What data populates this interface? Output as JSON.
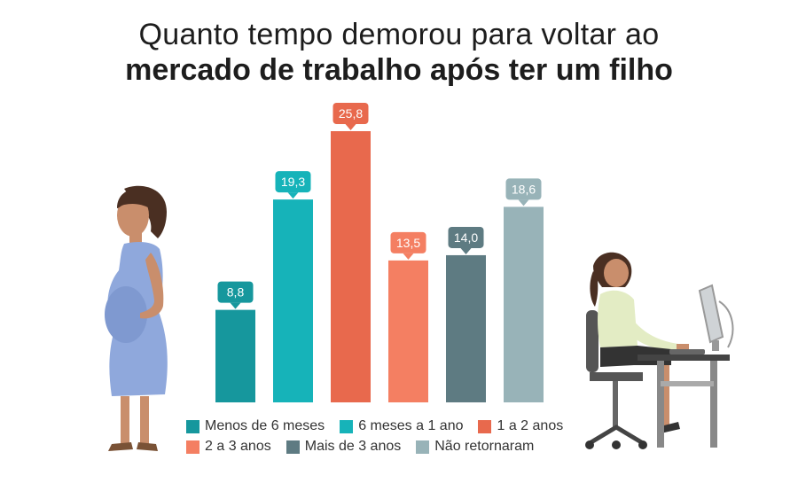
{
  "title": {
    "line1": "Quanto tempo demorou para voltar ao",
    "line2": "mercado de trabalho após ter um filho"
  },
  "chart_data": {
    "type": "bar",
    "title": "Quanto tempo demorou para voltar ao mercado de trabalho após ter um filho",
    "categories": [
      "Menos de 6 meses",
      "6 meses a 1 ano",
      "1 a 2 anos",
      "2 a 3 anos",
      "Mais de 3 anos",
      "Não retornaram"
    ],
    "values": [
      8.8,
      19.3,
      25.8,
      13.5,
      14.0,
      18.6
    ],
    "value_labels": [
      "8,8",
      "19,3",
      "25,8",
      "13,5",
      "14,0",
      "18,6"
    ],
    "colors": [
      "#16979d",
      "#16b3b9",
      "#e8694d",
      "#f47f62",
      "#5e7b82",
      "#98b3b8"
    ],
    "xlabel": "",
    "ylabel": "",
    "ylim": [
      0,
      25.8
    ],
    "grid": false,
    "legend_position": "bottom"
  },
  "legend": [
    {
      "label": "Menos de 6 meses",
      "color": "#16979d"
    },
    {
      "label": "6 meses a 1 ano",
      "color": "#16b3b9"
    },
    {
      "label": "1 a 2 anos",
      "color": "#e8694d"
    },
    {
      "label": "2 a 3 anos",
      "color": "#f47f62"
    },
    {
      "label": "Mais de 3 anos",
      "color": "#5e7b82"
    },
    {
      "label": "Não retornaram",
      "color": "#98b3b8"
    }
  ],
  "icons": {
    "left": "pregnant-woman-icon",
    "right": "woman-at-computer-icon"
  }
}
